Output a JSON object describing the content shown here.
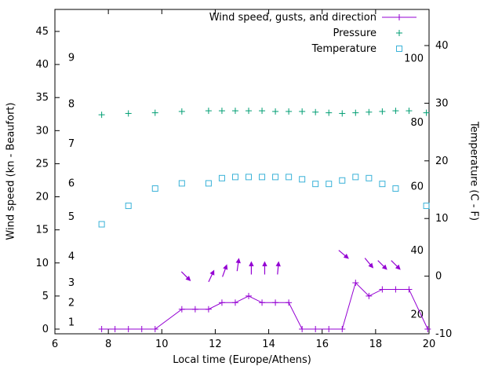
{
  "chart_data": {
    "type": "line",
    "title": "",
    "xlabel": "Local time (Europe/Athens)",
    "ylabel_left": "Wind speed (kn - Beaufort)",
    "ylabel_right": "Temperature (C - F)",
    "grid": false,
    "legend_position": "top-right-inside",
    "x_axis": {
      "range": [
        6,
        20
      ],
      "ticks": [
        6,
        8,
        10,
        12,
        14,
        16,
        18,
        20
      ]
    },
    "y_left_axis": {
      "unit": "kn",
      "range": [
        0,
        45
      ],
      "ticks": [
        0,
        5,
        10,
        15,
        20,
        25,
        30,
        35,
        40,
        45
      ],
      "beaufort_labels": [
        {
          "label": "1",
          "kn": 1
        },
        {
          "label": "2",
          "kn": 4
        },
        {
          "label": "3",
          "kn": 7
        },
        {
          "label": "4",
          "kn": 11
        },
        {
          "label": "5",
          "kn": 17
        },
        {
          "label": "6",
          "kn": 22
        },
        {
          "label": "7",
          "kn": 28
        },
        {
          "label": "8",
          "kn": 34
        },
        {
          "label": "9",
          "kn": 41
        }
      ]
    },
    "y_right_axis": {
      "unit": "C",
      "range": [
        -10,
        40
      ],
      "ticks": [
        -10,
        0,
        10,
        20,
        30,
        40
      ],
      "fahrenheit_labels": [
        20,
        40,
        60,
        80,
        100
      ]
    },
    "series": {
      "wind": {
        "name": "Wind speed, gusts, and direction",
        "color": "#9400d3",
        "marker": "plus",
        "unit": "kn",
        "points": [
          [
            7.75,
            0
          ],
          [
            8.25,
            0
          ],
          [
            8.75,
            0
          ],
          [
            9.25,
            0
          ],
          [
            9.75,
            0
          ],
          [
            10.75,
            3
          ],
          [
            11.25,
            3
          ],
          [
            11.75,
            3
          ],
          [
            12.25,
            4
          ],
          [
            12.75,
            4
          ],
          [
            13.25,
            5
          ],
          [
            13.75,
            4
          ],
          [
            14.25,
            4
          ],
          [
            14.75,
            4
          ],
          [
            15.25,
            0
          ],
          [
            15.75,
            0
          ],
          [
            16.25,
            0
          ],
          [
            16.75,
            0
          ],
          [
            17.25,
            7
          ],
          [
            17.75,
            5
          ],
          [
            18.25,
            6
          ],
          [
            18.75,
            6
          ],
          [
            19.25,
            6
          ],
          [
            19.95,
            0
          ]
        ]
      },
      "wind_direction_arrows": {
        "color": "#9400d3",
        "arrows": [
          [
            10.9,
            8.0,
            135
          ],
          [
            11.85,
            8.0,
            25
          ],
          [
            12.35,
            8.8,
            20
          ],
          [
            12.85,
            9.7,
            8
          ],
          [
            13.35,
            9.2,
            0
          ],
          [
            13.85,
            9.2,
            0
          ],
          [
            14.35,
            9.2,
            5
          ],
          [
            16.8,
            11.3,
            130
          ],
          [
            17.75,
            10.0,
            140
          ],
          [
            18.25,
            9.7,
            135
          ],
          [
            18.75,
            9.7,
            135
          ]
        ]
      },
      "pressure": {
        "name": "Pressure",
        "color": "#009e73",
        "marker": "plus",
        "plot_scale": "left_kn",
        "points": [
          [
            7.75,
            32.4
          ],
          [
            8.75,
            32.6
          ],
          [
            9.75,
            32.7
          ],
          [
            10.75,
            32.9
          ],
          [
            11.75,
            33.0
          ],
          [
            12.25,
            33.0
          ],
          [
            12.75,
            33.0
          ],
          [
            13.25,
            33.0
          ],
          [
            13.75,
            33.0
          ],
          [
            14.25,
            32.9
          ],
          [
            14.75,
            32.9
          ],
          [
            15.25,
            32.9
          ],
          [
            15.75,
            32.8
          ],
          [
            16.25,
            32.7
          ],
          [
            16.75,
            32.6
          ],
          [
            17.25,
            32.7
          ],
          [
            17.75,
            32.8
          ],
          [
            18.25,
            32.9
          ],
          [
            18.75,
            33.0
          ],
          [
            19.25,
            33.0
          ],
          [
            19.9,
            32.7
          ]
        ]
      },
      "temperature": {
        "name": "Temperature",
        "color": "#3ab2d8",
        "marker": "open-square",
        "unit": "C",
        "points": [
          [
            7.75,
            9.0
          ],
          [
            8.75,
            12.2
          ],
          [
            9.75,
            15.2
          ],
          [
            10.75,
            16.1
          ],
          [
            11.75,
            16.1
          ],
          [
            12.25,
            17.0
          ],
          [
            12.75,
            17.2
          ],
          [
            13.25,
            17.2
          ],
          [
            13.75,
            17.2
          ],
          [
            14.25,
            17.2
          ],
          [
            14.75,
            17.2
          ],
          [
            15.25,
            16.8
          ],
          [
            15.75,
            16.0
          ],
          [
            16.25,
            16.0
          ],
          [
            16.75,
            16.6
          ],
          [
            17.25,
            17.2
          ],
          [
            17.75,
            17.0
          ],
          [
            18.25,
            16.0
          ],
          [
            18.75,
            15.2
          ],
          [
            19.9,
            12.2
          ]
        ]
      }
    }
  }
}
